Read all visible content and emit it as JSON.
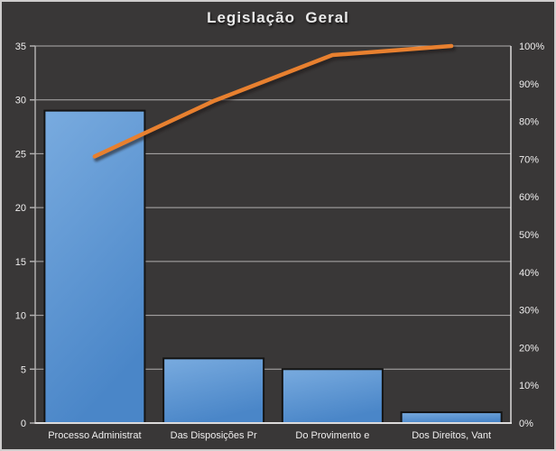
{
  "title": "Legislação  Geral",
  "colors": {
    "background": "#393737",
    "plot_background": "#393737",
    "frame_border": "#cfcdcd",
    "gridline": "#b0aeae",
    "axis_line": "#dddbdb",
    "tick_text": "#efeeee",
    "bar_fill_top": "#79abdf",
    "bar_fill_bottom": "#4a86c8",
    "bar_border": "#141414",
    "line": "#e8802f",
    "line_shadow": "#1a1818"
  },
  "chart_data": {
    "type": "bar",
    "subtype": "pareto (bar + cumulative line)",
    "title": "Legislação  Geral",
    "categories": [
      "Processo Administrat",
      "Das Disposições Pr",
      "Do Provimento e",
      "Dos Direitos, Vant"
    ],
    "series": [
      {
        "name": "frequency-bars",
        "type": "bar",
        "axis": "left",
        "values": [
          29,
          6,
          5,
          1
        ]
      },
      {
        "name": "cumulative-percent-line",
        "type": "line",
        "axis": "right",
        "values": [
          70.7,
          85.4,
          97.6,
          100
        ]
      }
    ],
    "left_axis": {
      "min": 0,
      "max": 35,
      "tick_step": 5,
      "tick_labels": [
        "0",
        "5",
        "10",
        "15",
        "20",
        "25",
        "30",
        "35"
      ]
    },
    "right_axis": {
      "min": 0,
      "max": 100,
      "tick_step": 10,
      "tick_labels": [
        "0%",
        "10%",
        "20%",
        "30%",
        "40%",
        "50%",
        "60%",
        "70%",
        "80%",
        "90%",
        "100%"
      ]
    },
    "grid": true,
    "legend": false
  }
}
